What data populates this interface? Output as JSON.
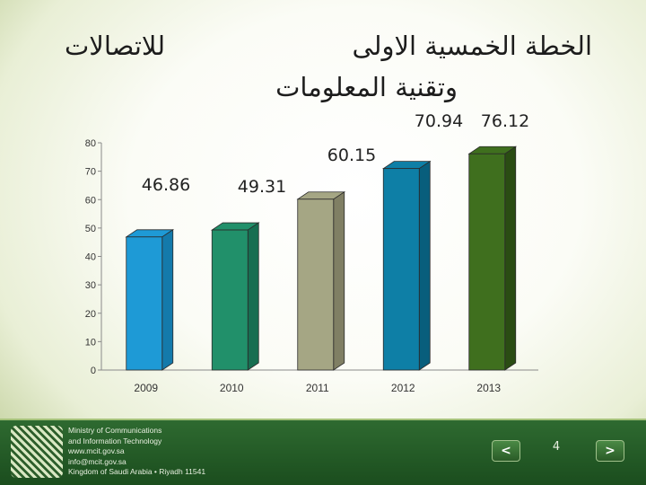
{
  "title": {
    "line1": "الخطة الخمسية الاولى",
    "line2": "وتقنية المعلومات",
    "line3": "للاتصالات"
  },
  "chart_data": {
    "type": "bar",
    "categories": [
      "2009",
      "2010",
      "2011",
      "2012",
      "2013"
    ],
    "values": [
      46.86,
      49.31,
      60.15,
      70.94,
      76.12
    ],
    "value_labels": [
      "46.86",
      "49.31",
      "60.15",
      "70.94",
      "76.12"
    ],
    "colors": [
      "#1e9ad6",
      "#21906a",
      "#a5a684",
      "#0e7fa6",
      "#3f6f1e"
    ],
    "side_colors": [
      "#147aab",
      "#176e51",
      "#807f64",
      "#085e7c",
      "#2a4c13"
    ],
    "ylim": [
      0,
      80
    ],
    "yticks": [
      0,
      10,
      20,
      30,
      40,
      50,
      60,
      70,
      80
    ],
    "ytick_labels": [
      "0",
      "10",
      "20",
      "30",
      "40",
      "50",
      "60",
      "70",
      "80"
    ],
    "grid": false
  },
  "footer": {
    "ministry_lines": [
      "Ministry of Communications",
      "and Information Technology",
      "www.mcit.gov.sa",
      "info@mcit.gov.sa",
      "Kingdom of Saudi Arabia • Riyadh 11541"
    ],
    "page_number": "4",
    "prev_glyph": "<",
    "next_glyph": ">"
  }
}
